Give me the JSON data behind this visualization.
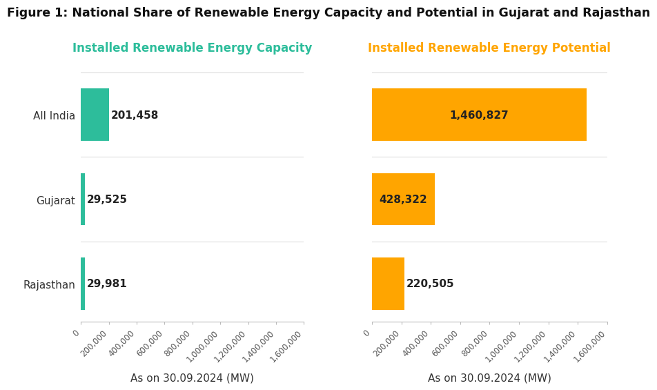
{
  "title": "Figure 1: National Share of Renewable Energy Capacity and Potential in Gujarat and Rajasthan",
  "categories": [
    "All India",
    "Gujarat",
    "Rajasthan"
  ],
  "capacity_values": [
    201458,
    29525,
    29981
  ],
  "potential_values": [
    1460827,
    428322,
    220505
  ],
  "capacity_labels": [
    "201,458",
    "29,525",
    "29,981"
  ],
  "potential_labels": [
    "1,460,827",
    "428,322",
    "220,505"
  ],
  "capacity_color": "#2DBD9B",
  "potential_color": "#FFA500",
  "capacity_title": "Installed Renewable Energy Capacity",
  "potential_title": "Installed Renewable Energy Potential",
  "xlabel": "As on 30.09.2024 (MW)",
  "xlim_capacity": [
    0,
    1600000
  ],
  "xlim_potential": [
    0,
    1600000
  ],
  "xtick_step": 200000,
  "background_color": "#ffffff",
  "separator_color": "#dddddd",
  "title_fontsize": 12.5,
  "subtitle_fontsize": 12,
  "ylabel_fontsize": 11,
  "bar_label_fontsize": 11,
  "tick_fontsize": 8.5,
  "xlabel_fontsize": 11,
  "bar_height": 0.62
}
